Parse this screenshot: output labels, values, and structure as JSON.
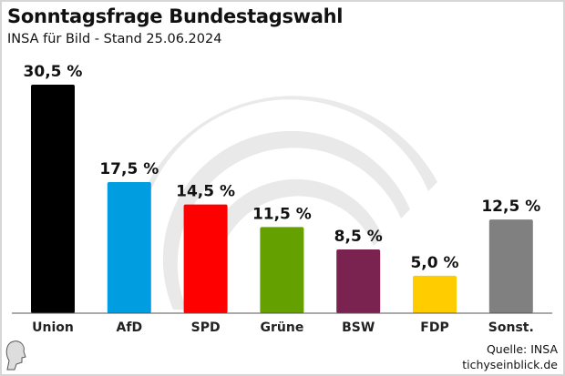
{
  "chart_data": {
    "type": "bar",
    "title": "Sonntagsfrage Bundestagswahl",
    "subtitle": "INSA für Bild - Stand 25.06.2024",
    "categories": [
      "Union",
      "AfD",
      "SPD",
      "Grüne",
      "BSW",
      "FDP",
      "Sonst."
    ],
    "values": [
      30.5,
      17.5,
      14.5,
      11.5,
      8.5,
      5.0,
      12.5
    ],
    "labels": [
      "30,5 %",
      "17,5 %",
      "14,5 %",
      "11,5 %",
      "8,5 %",
      "5,0 %",
      "12,5 %"
    ],
    "colors": [
      "#000000",
      "#009ee0",
      "#ff0000",
      "#64a000",
      "#7a2350",
      "#ffcc00",
      "#808080"
    ],
    "ylim": [
      0,
      30.5
    ],
    "grid": false,
    "xlabel": "",
    "ylabel": ""
  },
  "footer": {
    "source": "Quelle: INSA",
    "site": "tichyseinblick.de"
  }
}
